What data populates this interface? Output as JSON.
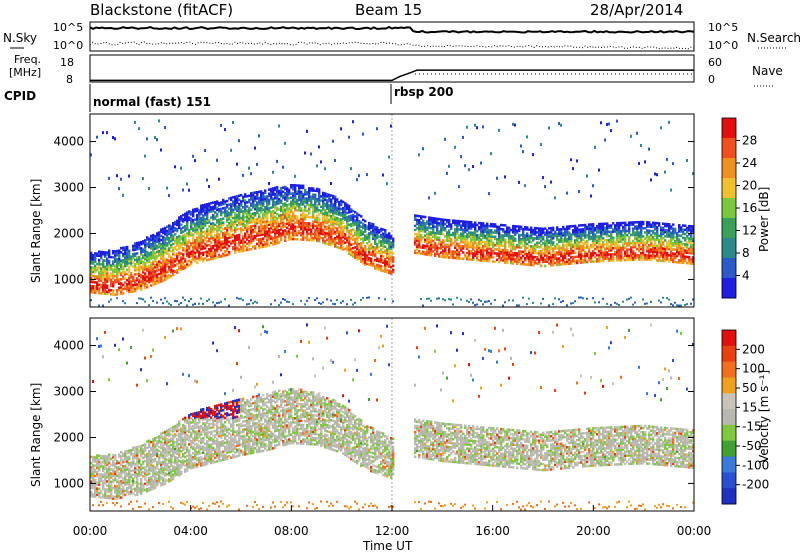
{
  "header": {
    "title": "Blackstone (fitACF)",
    "beam": "Beam 15",
    "date": "28/Apr/2014"
  },
  "sky_panel": {
    "left_label": "N.Sky",
    "right_label": "N.Search",
    "left_ticks": [
      "10^5",
      "10^0"
    ],
    "right_ticks": [
      "10^5",
      "10^0"
    ]
  },
  "freq_panel": {
    "label_line1": "Freq.",
    "label_line2": "[MHz]",
    "right_label": "Nave",
    "left_ticks": [
      "18",
      "8"
    ],
    "right_ticks": [
      "60",
      "0"
    ]
  },
  "cpid": {
    "label": "CPID",
    "modes": [
      {
        "name": "normal (fast) 151",
        "start_hour": 0
      },
      {
        "name": "rbsp 200",
        "start_hour": 12
      }
    ]
  },
  "colors": {
    "power": [
      "#1f1fe0",
      "#2b5bc9",
      "#2e8a8a",
      "#3aa05a",
      "#7cc83c",
      "#f0c030",
      "#f09020",
      "#f05020",
      "#e01010"
    ],
    "velocity": [
      "#2030c0",
      "#2a50d0",
      "#3a7ad8",
      "#40a030",
      "#80c840",
      "#b8b8b0",
      "#c8c4b8",
      "#f0a020",
      "#f07020",
      "#e84010",
      "#e01010"
    ]
  },
  "chart_data": [
    {
      "type": "heatmap",
      "name": "Power",
      "xlabel": "",
      "ylabel": "Slant Range [km]",
      "xlim": [
        0,
        24
      ],
      "ylim": [
        400,
        4600
      ],
      "colorbar_label": "Power [dB]",
      "colorbar_ticks": [
        "28",
        "24",
        "20",
        "16",
        "12",
        "8",
        "4"
      ],
      "colorbar_range": [
        0,
        32
      ],
      "echo_band_center_km": [
        [
          0,
          950
        ],
        [
          1,
          920
        ],
        [
          2,
          1050
        ],
        [
          3,
          1300
        ],
        [
          4,
          1650
        ],
        [
          5,
          1800
        ],
        [
          6,
          1950
        ],
        [
          7,
          2050
        ],
        [
          8,
          2200
        ],
        [
          9,
          2150
        ],
        [
          10,
          1950
        ],
        [
          11,
          1550
        ],
        [
          12,
          1350
        ],
        [
          12.8,
          1800
        ],
        [
          14,
          1700
        ],
        [
          16,
          1600
        ],
        [
          18,
          1500
        ],
        [
          20,
          1600
        ],
        [
          22,
          1650
        ],
        [
          24,
          1550
        ]
      ]
    },
    {
      "type": "heatmap",
      "name": "Velocity",
      "xlabel": "Time UT",
      "ylabel": "Slant Range [km]",
      "xlim": [
        0,
        24
      ],
      "ylim": [
        400,
        4600
      ],
      "x_ticks": [
        "00:00",
        "04:00",
        "08:00",
        "12:00",
        "16:00",
        "20:00",
        "00:00"
      ],
      "y_ticks": [
        "1000",
        "2000",
        "3000",
        "4000"
      ],
      "colorbar_label": "Velocity [m s⁻¹]",
      "colorbar_ticks": [
        "200",
        "100",
        "50",
        "15",
        "-15",
        "-50",
        "-100",
        "-200"
      ],
      "colorbar_range": [
        -250,
        250
      ]
    },
    {
      "type": "line",
      "name": "Frequency",
      "x": [
        0,
        12,
        12.3,
        12.6,
        13,
        24
      ],
      "y": [
        8.6,
        8.6,
        10,
        11,
        12.4,
        12.4
      ],
      "ylim": [
        8,
        18
      ]
    }
  ]
}
